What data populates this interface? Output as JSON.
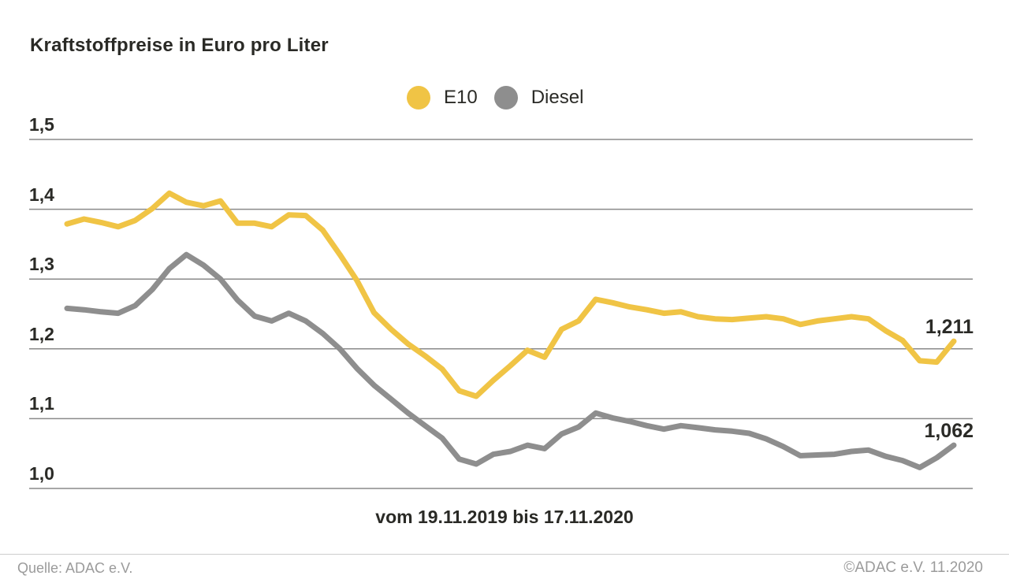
{
  "page": {
    "footer": {
      "source_left": "Quelle: ADAC e.V.",
      "source_right": "©ADAC e.V. 11.2020"
    }
  },
  "legend": [
    {
      "label": "E10",
      "color": "#F0C445"
    },
    {
      "label": "Diesel",
      "color": "#8E8E8E"
    }
  ],
  "colors": {
    "e10": "#F0C445",
    "diesel": "#8E8E8E",
    "gridline": "#8a8a8a",
    "text": "#2a2a26",
    "footer_text": "#9b9b9b",
    "footer_rule": "#cccccc",
    "background": "#ffffff"
  },
  "chart_data": {
    "type": "line",
    "title": "Kraftstoffpreise in Euro pro Liter",
    "xlabel": "vom 19.11.2019 bis 17.11.2020",
    "x_start_date": "19.11.2019",
    "x_end_date": "17.11.2020",
    "x_interval": "weekly",
    "ylabel": "",
    "ylim": [
      1.0,
      1.5
    ],
    "yticks": [
      "1,5",
      "1,4",
      "1,3",
      "1,2",
      "1,1",
      "1,0"
    ],
    "ytick_values": [
      1.5,
      1.4,
      1.3,
      1.2,
      1.1,
      1.0
    ],
    "grid": true,
    "legend_position": "top-center",
    "series": [
      {
        "name": "E10",
        "color": "#F0C445",
        "end_label": "1,211",
        "final_value": 1.211,
        "values": [
          1.379,
          1.386,
          1.381,
          1.375,
          1.384,
          1.401,
          1.423,
          1.41,
          1.405,
          1.412,
          1.38,
          1.38,
          1.375,
          1.392,
          1.391,
          1.37,
          1.335,
          1.298,
          1.252,
          1.228,
          1.207,
          1.19,
          1.171,
          1.14,
          1.132,
          1.155,
          1.176,
          1.198,
          1.188,
          1.228,
          1.24,
          1.271,
          1.266,
          1.26,
          1.256,
          1.251,
          1.253,
          1.246,
          1.243,
          1.242,
          1.244,
          1.246,
          1.243,
          1.235,
          1.24,
          1.243,
          1.246,
          1.243,
          1.226,
          1.212,
          1.183,
          1.181,
          1.211
        ]
      },
      {
        "name": "Diesel",
        "color": "#8E8E8E",
        "end_label": "1,062",
        "final_value": 1.062,
        "values": [
          1.258,
          1.256,
          1.253,
          1.251,
          1.262,
          1.285,
          1.315,
          1.335,
          1.32,
          1.3,
          1.27,
          1.247,
          1.24,
          1.251,
          1.24,
          1.222,
          1.2,
          1.172,
          1.148,
          1.128,
          1.108,
          1.09,
          1.072,
          1.042,
          1.035,
          1.049,
          1.053,
          1.062,
          1.057,
          1.078,
          1.088,
          1.108,
          1.101,
          1.096,
          1.09,
          1.085,
          1.09,
          1.087,
          1.084,
          1.082,
          1.079,
          1.071,
          1.06,
          1.047,
          1.048,
          1.049,
          1.053,
          1.055,
          1.046,
          1.04,
          1.03,
          1.044,
          1.062
        ]
      }
    ]
  }
}
